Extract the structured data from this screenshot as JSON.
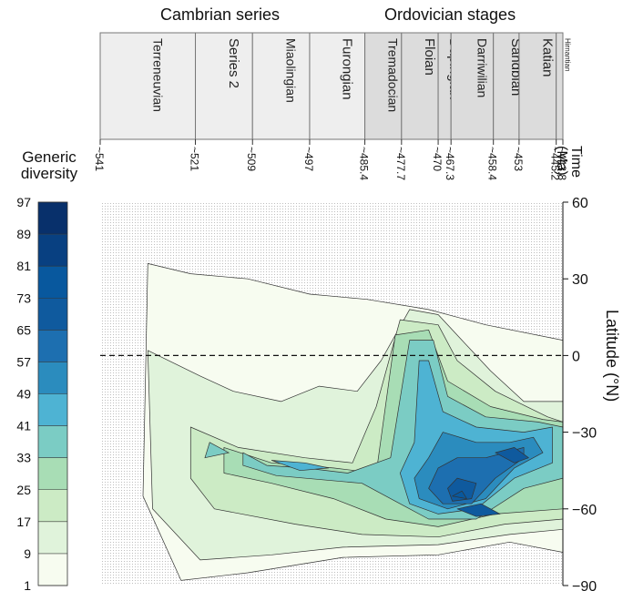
{
  "header": {
    "cambrian_label": "Cambrian series",
    "ordovician_label": "Ordovician stages"
  },
  "legend": {
    "title_line1": "Generic",
    "title_line2": "diversity",
    "ticks": [
      "1",
      "9",
      "17",
      "25",
      "33",
      "41",
      "49",
      "57",
      "65",
      "73",
      "81",
      "89",
      "97"
    ],
    "colors": [
      "#f7fcf0",
      "#e0f3db",
      "#ccebc5",
      "#a8ddb5",
      "#7bccc4",
      "#4eb3d3",
      "#2b8cbe",
      "#1d6fb0",
      "#0f5a9e",
      "#08589e",
      "#084081",
      "#08306b"
    ]
  },
  "time_axis": {
    "title_line1": "Time",
    "title_line2": "(Ma)"
  },
  "lat_axis": {
    "title": "Latitude (°N)"
  },
  "chart_data": {
    "type": "heatmap",
    "title": "",
    "xlabel": "Time (Ma)",
    "ylabel": "Latitude (°N)",
    "x_direction": "reversed",
    "xlim": [
      541,
      443.8
    ],
    "ylim": [
      -90,
      60
    ],
    "y_ticks": [
      60,
      30,
      0,
      -30,
      -60,
      -90
    ],
    "equator_line": 0,
    "x_tick_labels": [
      "~541",
      "~521",
      "~509",
      "~497",
      "~485.4",
      "~477.7",
      "~470",
      "~467.3",
      "~458.4",
      "~453",
      "~445.2",
      "~443.8"
    ],
    "x_tick_values": [
      541,
      521,
      509,
      497,
      485.4,
      477.7,
      470,
      467.3,
      458.4,
      453,
      445.2,
      443.8
    ],
    "intervals": [
      {
        "name": "Terreneuvian",
        "start": 541,
        "end": 521,
        "group": "Cambrian"
      },
      {
        "name": "Series 2",
        "start": 521,
        "end": 509,
        "group": "Cambrian"
      },
      {
        "name": "Miaolingian",
        "start": 509,
        "end": 497,
        "group": "Cambrian"
      },
      {
        "name": "Furongian",
        "start": 497,
        "end": 485.4,
        "group": "Cambrian"
      },
      {
        "name": "Tremadocian",
        "start": 485.4,
        "end": 477.7,
        "group": "Ordovician"
      },
      {
        "name": "Floian",
        "start": 477.7,
        "end": 470,
        "group": "Ordovician"
      },
      {
        "name": "Dapingian",
        "start": 470,
        "end": 467.3,
        "group": "Ordovician"
      },
      {
        "name": "Darriwilian",
        "start": 467.3,
        "end": 458.4,
        "group": "Ordovician"
      },
      {
        "name": "Sandbian",
        "start": 458.4,
        "end": 453,
        "group": "Ordovician"
      },
      {
        "name": "Katian",
        "start": 453,
        "end": 445.2,
        "group": "Ordovician"
      },
      {
        "name": "Hirnantian",
        "start": 445.2,
        "end": 443.8,
        "group": "Ordovician"
      }
    ],
    "color_scale": {
      "label": "Generic diversity",
      "breaks": [
        1,
        9,
        17,
        25,
        33,
        41,
        49,
        57,
        65,
        73,
        81,
        89,
        97
      ]
    },
    "hotspots": [
      {
        "time": 472,
        "lat": 8,
        "value": 45
      },
      {
        "time": 465,
        "lat": -55,
        "value": 80
      },
      {
        "time": 455,
        "lat": -35,
        "value": 75
      },
      {
        "time": 448,
        "lat": -30,
        "value": 70
      },
      {
        "time": 460,
        "lat": -62,
        "value": 75
      },
      {
        "time": 507,
        "lat": -42,
        "value": 45
      }
    ]
  }
}
